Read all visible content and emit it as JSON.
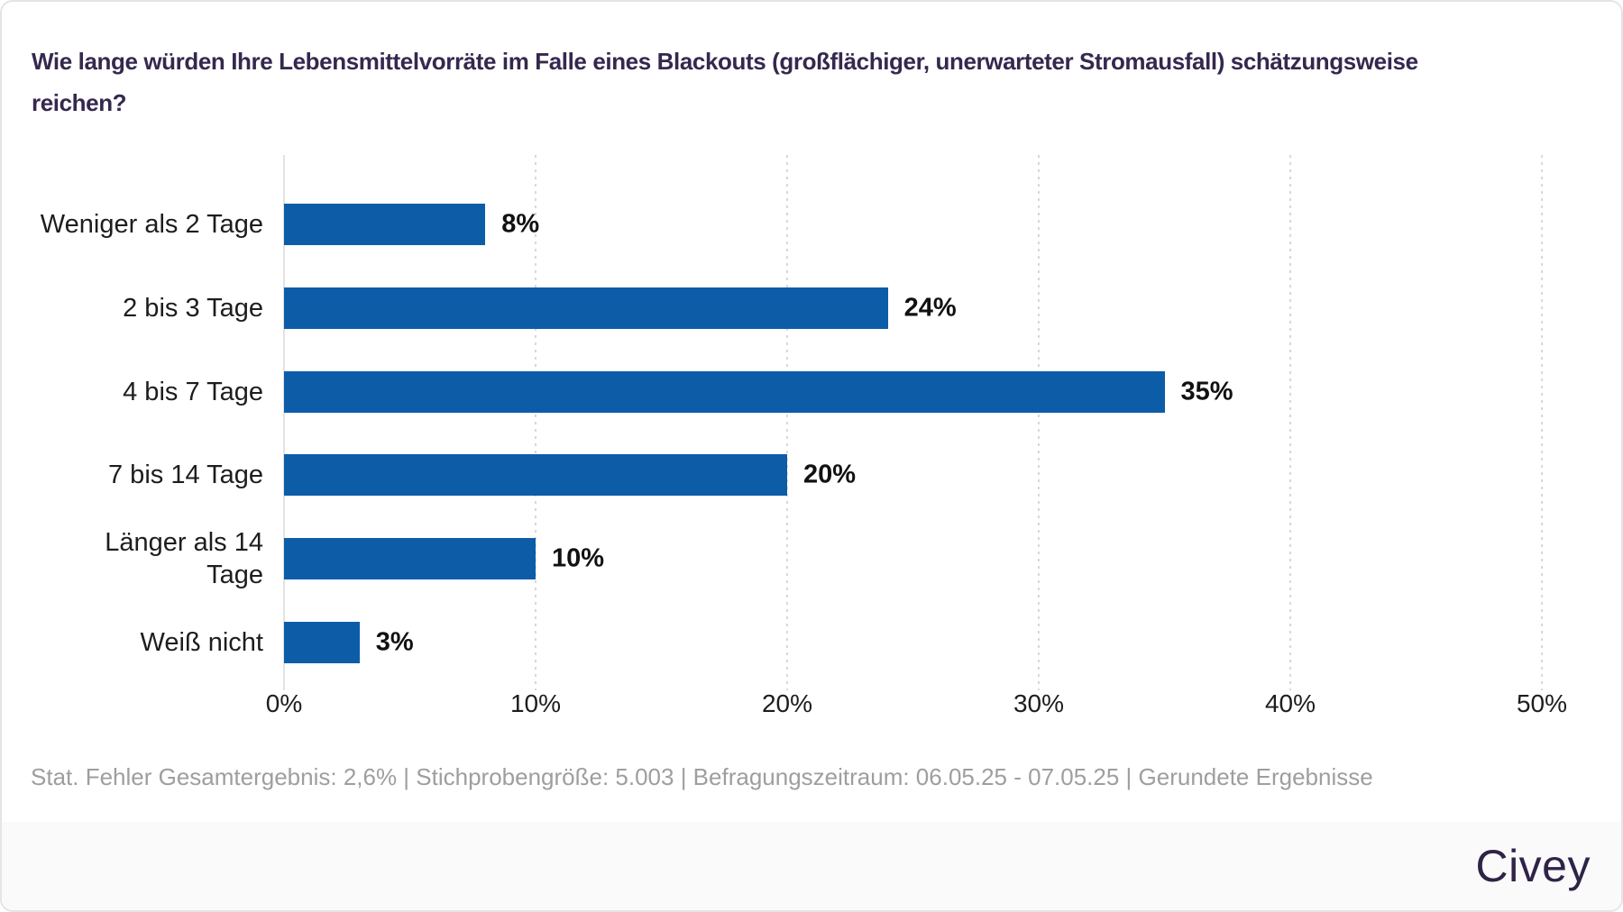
{
  "header": {
    "title_lines": [
      "Wie lange würden Ihre Lebensmittelvorräte im Falle eines Blackouts (großflächiger, unerwarteter Stromausfall) schätzungsweise",
      "reichen?"
    ]
  },
  "chart_data": {
    "type": "bar",
    "orientation": "horizontal",
    "title": "Wie lange würden Ihre Lebensmittelvorräte im Falle eines Blackouts (großflächiger, unerwarteter Stromausfall) schätzungsweise reichen?",
    "categories": [
      "Weniger als 2 Tage",
      "2 bis 3 Tage",
      "4 bis 7 Tage",
      "7 bis 14 Tage",
      "Länger als 14\nTage",
      "Weiß nicht"
    ],
    "values": [
      8,
      24,
      35,
      20,
      10,
      3
    ],
    "value_labels": [
      "8%",
      "24%",
      "35%",
      "20%",
      "10%",
      "3%"
    ],
    "x_ticks": [
      "0%",
      "10%",
      "20%",
      "30%",
      "40%",
      "50%"
    ],
    "x_tick_values": [
      0,
      10,
      20,
      30,
      40,
      50
    ],
    "xlim": [
      0,
      50
    ],
    "xlabel": "",
    "ylabel": "",
    "grid": "vertical-dotted",
    "legend": "none",
    "bar_color": "#0d5ca8"
  },
  "footer": {
    "note": "Stat. Fehler Gesamtergebnis: 2,6% | Stichprobengröße: 5.003 | Befragungszeitraum: 06.05.25 - 07.05.25 | Gerundete Ergebnisse"
  },
  "brand": {
    "logo_text": "Civey",
    "logo_color": "#2f2347"
  }
}
